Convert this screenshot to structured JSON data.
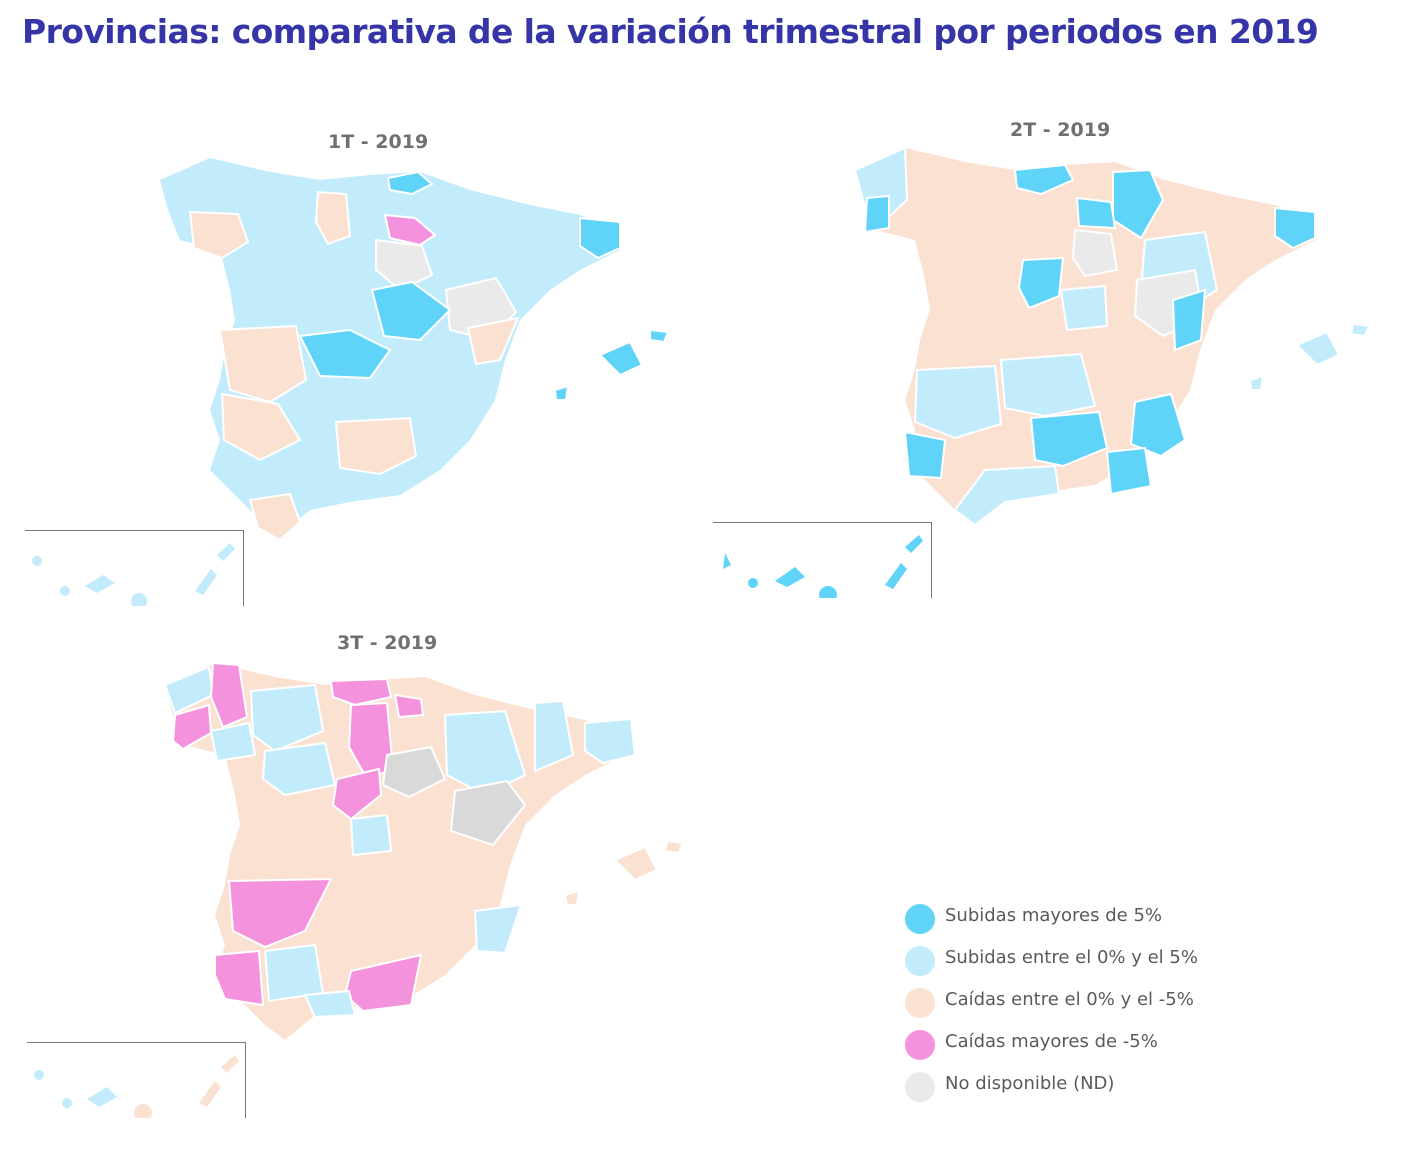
{
  "title": "Provincias: comparativa de la variación trimestral por periodos en 2019",
  "colors": {
    "up_gt5": "#5fd3f8",
    "up_0_5": "#c2ecfb",
    "down_0_5": "#fbe1d2",
    "down_gt5": "#f592de",
    "nd": "#eaeaea"
  },
  "maps": [
    {
      "title": "1T - 2019"
    },
    {
      "title": "2T - 2019"
    },
    {
      "title": "3T - 2019"
    }
  ],
  "legend": [
    {
      "label": "Subidas mayores de 5%",
      "color": "#5fd3f8"
    },
    {
      "label": "Subidas entre el 0% y el 5%",
      "color": "#c2ecfb"
    },
    {
      "label": "Caídas entre el 0% y el -5%",
      "color": "#fbe1d2"
    },
    {
      "label": "Caídas mayores de -5%",
      "color": "#f592de"
    },
    {
      "label": "No disponible (ND)",
      "color": "#eaeaea"
    }
  ]
}
